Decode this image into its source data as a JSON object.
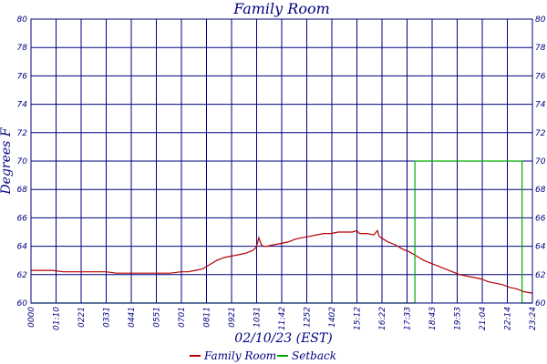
{
  "chart_data": {
    "type": "line",
    "title": "Family Room",
    "xlabel": "02/10/23 (EST)",
    "ylabel": "Degrees F",
    "ylim": [
      60,
      80
    ],
    "xlim": [
      "00:00",
      "23:24"
    ],
    "x_ticks": [
      "0000",
      "01:10",
      "0221",
      "0331",
      "0441",
      "0551",
      "0701",
      "0811",
      "0921",
      "1031",
      "11:42",
      "1252",
      "1402",
      "15:12",
      "16:22",
      "17:33",
      "18:43",
      "19:53",
      "21:04",
      "22:14",
      "23:24"
    ],
    "y_ticks": [
      60,
      62,
      64,
      66,
      68,
      70,
      72,
      74,
      76,
      78,
      80
    ],
    "grid": true,
    "legend_position": "bottom",
    "series": [
      {
        "name": "Family Room",
        "color": "#b30000",
        "x": [
          "00:00",
          "00:30",
          "01:00",
          "01:30",
          "02:00",
          "02:30",
          "03:00",
          "03:30",
          "04:00",
          "04:30",
          "05:00",
          "05:30",
          "06:00",
          "06:30",
          "07:00",
          "07:20",
          "07:40",
          "08:00",
          "08:20",
          "08:40",
          "09:00",
          "09:20",
          "09:40",
          "10:00",
          "10:20",
          "10:30",
          "10:35",
          "10:38",
          "10:42",
          "10:45",
          "10:50",
          "11:00",
          "11:20",
          "11:40",
          "12:00",
          "12:20",
          "12:40",
          "13:00",
          "13:20",
          "13:40",
          "14:00",
          "14:20",
          "14:40",
          "15:00",
          "15:12",
          "15:20",
          "15:40",
          "16:00",
          "16:10",
          "16:15",
          "16:20",
          "16:40",
          "17:00",
          "17:20",
          "17:40",
          "18:00",
          "18:20",
          "18:40",
          "19:00",
          "19:20",
          "19:40",
          "20:00",
          "20:20",
          "20:40",
          "21:00",
          "21:20",
          "21:40",
          "22:00",
          "22:20",
          "22:40",
          "23:00",
          "23:24"
        ],
        "y": [
          62.3,
          62.3,
          62.3,
          62.2,
          62.2,
          62.2,
          62.2,
          62.2,
          62.1,
          62.1,
          62.1,
          62.1,
          62.1,
          62.1,
          62.2,
          62.2,
          62.3,
          62.4,
          62.7,
          63.0,
          63.2,
          63.3,
          63.4,
          63.5,
          63.7,
          63.9,
          64.3,
          64.6,
          64.3,
          64.1,
          64.0,
          64.0,
          64.1,
          64.2,
          64.3,
          64.5,
          64.6,
          64.7,
          64.8,
          64.9,
          64.9,
          65.0,
          65.0,
          65.0,
          65.1,
          64.9,
          64.9,
          64.8,
          65.1,
          64.7,
          64.6,
          64.3,
          64.1,
          63.8,
          63.6,
          63.3,
          63.0,
          62.8,
          62.6,
          62.4,
          62.2,
          62.0,
          61.9,
          61.8,
          61.7,
          61.5,
          61.4,
          61.3,
          61.1,
          61.0,
          60.8,
          60.7
        ]
      },
      {
        "name": "Setback",
        "color": "#00aa00",
        "x": [
          "00:00",
          "17:55",
          "17:55",
          "22:55",
          "22:55",
          "23:24"
        ],
        "y": [
          60,
          60,
          70,
          70,
          60,
          60
        ]
      }
    ]
  }
}
